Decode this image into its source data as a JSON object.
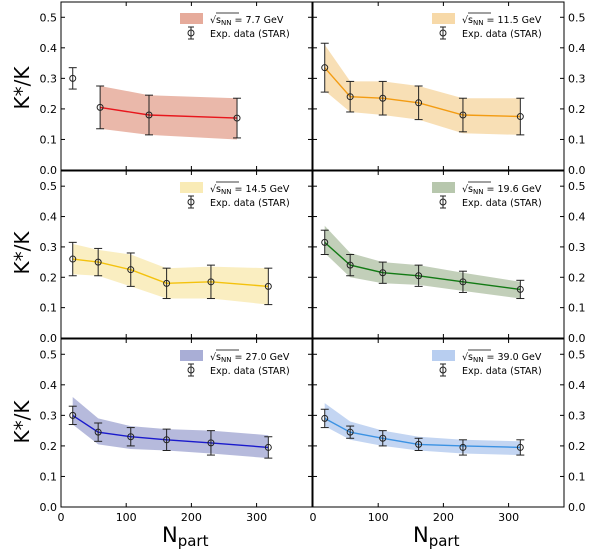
{
  "figure": {
    "ylabel": "K*/K",
    "xlabel": "N",
    "xlabel_sub": "part",
    "x_ticks": [
      0,
      100,
      200,
      300
    ],
    "y_ticks": [
      0.0,
      0.1,
      0.2,
      0.3,
      0.4,
      0.5
    ],
    "xlim": [
      0,
      385
    ],
    "ylim": [
      0.0,
      0.55
    ],
    "exp_label": "Exp. data (STAR)",
    "energy_prefix": "√s",
    "energy_sub": "NN"
  },
  "chart_data": [
    {
      "type": "line",
      "energy": "= 7.7 GeV",
      "color": "#e8161c",
      "band_color": "#e6ab9b",
      "model": {
        "x": [
          60,
          135,
          270
        ],
        "y": [
          0.205,
          0.18,
          0.17
        ],
        "lo": [
          0.135,
          0.115,
          0.1
        ],
        "hi": [
          0.275,
          0.245,
          0.235
        ]
      },
      "exp": {
        "x": [
          18,
          60,
          135,
          270
        ],
        "y": [
          0.3,
          0.205,
          0.18,
          0.17
        ],
        "err": [
          0.035,
          0.07,
          0.065,
          0.065
        ]
      }
    },
    {
      "type": "line",
      "energy": "= 11.5 GeV",
      "color": "#f39c13",
      "band_color": "#f7d9a8",
      "model": {
        "x": [
          18,
          57,
          107,
          162,
          230,
          318
        ],
        "y": [
          0.335,
          0.24,
          0.235,
          0.22,
          0.18,
          0.175
        ],
        "lo": [
          0.26,
          0.19,
          0.18,
          0.165,
          0.12,
          0.115
        ],
        "hi": [
          0.41,
          0.29,
          0.29,
          0.275,
          0.235,
          0.235
        ]
      },
      "exp": {
        "x": [
          18,
          57,
          107,
          162,
          230,
          318
        ],
        "y": [
          0.335,
          0.24,
          0.235,
          0.22,
          0.18,
          0.175
        ],
        "err": [
          0.08,
          0.05,
          0.055,
          0.055,
          0.055,
          0.06
        ]
      }
    },
    {
      "type": "line",
      "energy": "= 14.5 GeV",
      "color": "#f4c20d",
      "band_color": "#f9ebb6",
      "model": {
        "x": [
          18,
          57,
          107,
          162,
          230,
          318
        ],
        "y": [
          0.26,
          0.25,
          0.225,
          0.18,
          0.185,
          0.17
        ],
        "lo": [
          0.21,
          0.205,
          0.17,
          0.13,
          0.13,
          0.11
        ],
        "hi": [
          0.31,
          0.29,
          0.275,
          0.23,
          0.235,
          0.23
        ]
      },
      "exp": {
        "x": [
          18,
          57,
          107,
          162,
          230,
          318
        ],
        "y": [
          0.26,
          0.25,
          0.225,
          0.18,
          0.185,
          0.17
        ],
        "err": [
          0.055,
          0.045,
          0.055,
          0.05,
          0.055,
          0.06
        ]
      }
    },
    {
      "type": "line",
      "energy": "= 19.6 GeV",
      "color": "#127a14",
      "band_color": "#b7c7ad",
      "model": {
        "x": [
          18,
          57,
          107,
          162,
          230,
          318
        ],
        "y": [
          0.315,
          0.24,
          0.215,
          0.205,
          0.185,
          0.16
        ],
        "lo": [
          0.28,
          0.2,
          0.18,
          0.175,
          0.155,
          0.13
        ],
        "hi": [
          0.37,
          0.28,
          0.25,
          0.24,
          0.215,
          0.185
        ]
      },
      "exp": {
        "x": [
          18,
          57,
          107,
          162,
          230,
          318
        ],
        "y": [
          0.315,
          0.24,
          0.215,
          0.205,
          0.185,
          0.16
        ],
        "err": [
          0.04,
          0.035,
          0.035,
          0.035,
          0.035,
          0.03
        ]
      }
    },
    {
      "type": "line",
      "energy": "= 27.0 GeV",
      "color": "#1a1acc",
      "band_color": "#a9aed6",
      "model": {
        "x": [
          18,
          57,
          107,
          162,
          230,
          318
        ],
        "y": [
          0.3,
          0.245,
          0.23,
          0.22,
          0.21,
          0.195
        ],
        "lo": [
          0.27,
          0.205,
          0.19,
          0.185,
          0.175,
          0.16
        ],
        "hi": [
          0.36,
          0.29,
          0.265,
          0.255,
          0.25,
          0.235
        ]
      },
      "exp": {
        "x": [
          18,
          57,
          107,
          162,
          230,
          318
        ],
        "y": [
          0.3,
          0.245,
          0.23,
          0.22,
          0.21,
          0.195
        ],
        "err": [
          0.03,
          0.03,
          0.03,
          0.035,
          0.04,
          0.035
        ]
      }
    },
    {
      "type": "line",
      "energy": "= 39.0 GeV",
      "color": "#3b92e3",
      "band_color": "#b8cef0",
      "model": {
        "x": [
          18,
          57,
          107,
          162,
          230,
          318
        ],
        "y": [
          0.29,
          0.245,
          0.225,
          0.205,
          0.2,
          0.195
        ],
        "lo": [
          0.265,
          0.22,
          0.2,
          0.185,
          0.175,
          0.17
        ],
        "hi": [
          0.34,
          0.28,
          0.25,
          0.23,
          0.22,
          0.215
        ]
      },
      "exp": {
        "x": [
          18,
          57,
          107,
          162,
          230,
          318
        ],
        "y": [
          0.29,
          0.245,
          0.225,
          0.205,
          0.195,
          0.195
        ],
        "err": [
          0.03,
          0.02,
          0.025,
          0.02,
          0.025,
          0.025
        ]
      }
    }
  ]
}
